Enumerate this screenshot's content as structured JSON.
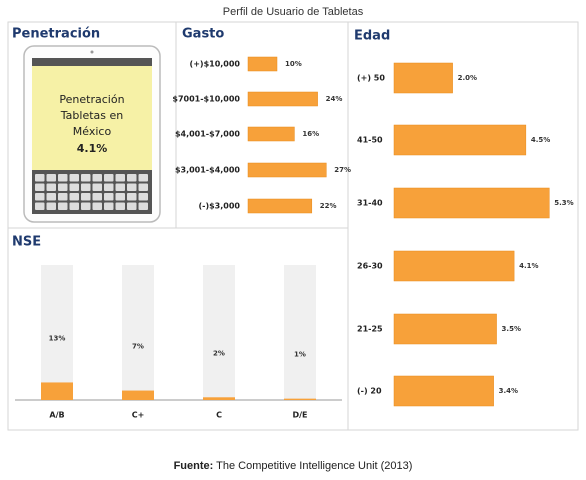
{
  "title": "Perfil de Usuario de Tabletas",
  "penetration": {
    "title": "Penetración",
    "text_lines": [
      "Penetración",
      "Tabletas en",
      "México"
    ],
    "value_label": "4.1%"
  },
  "chart_data": [
    {
      "type": "bar",
      "orientation": "horizontal",
      "title": "Gasto",
      "color": "#f7a13a",
      "categories": [
        "(+)$10,000",
        "$7001-$10,000",
        "$4,001-$7,000",
        "$3,001-$4,000",
        "(-)$3,000"
      ],
      "values": [
        10,
        24,
        16,
        27,
        22
      ],
      "value_labels": [
        "10%",
        "24%",
        "16%",
        "27%",
        "22%"
      ]
    },
    {
      "type": "bar",
      "orientation": "vertical",
      "title": "NSE",
      "color": "#f7a13a",
      "categories": [
        "A/B",
        "C+",
        "C",
        "D/E"
      ],
      "values": [
        13,
        7,
        2,
        1
      ],
      "value_labels": [
        "13%",
        "7%",
        "2%",
        "1%"
      ]
    },
    {
      "type": "bar",
      "orientation": "horizontal",
      "title": "Edad",
      "color": "#f7a13a",
      "categories": [
        "(+) 50",
        "41-50",
        "31-40",
        "26-30",
        "21-25",
        "(-) 20"
      ],
      "values": [
        2.0,
        4.5,
        5.3,
        4.1,
        3.5,
        3.4
      ],
      "value_labels": [
        "2.0%",
        "4.5%",
        "5.3%",
        "4.1%",
        "3.5%",
        "3.4%"
      ]
    }
  ],
  "source": {
    "label": "Fuente:",
    "text": "The Competitive Intelligence Unit (2013)"
  }
}
